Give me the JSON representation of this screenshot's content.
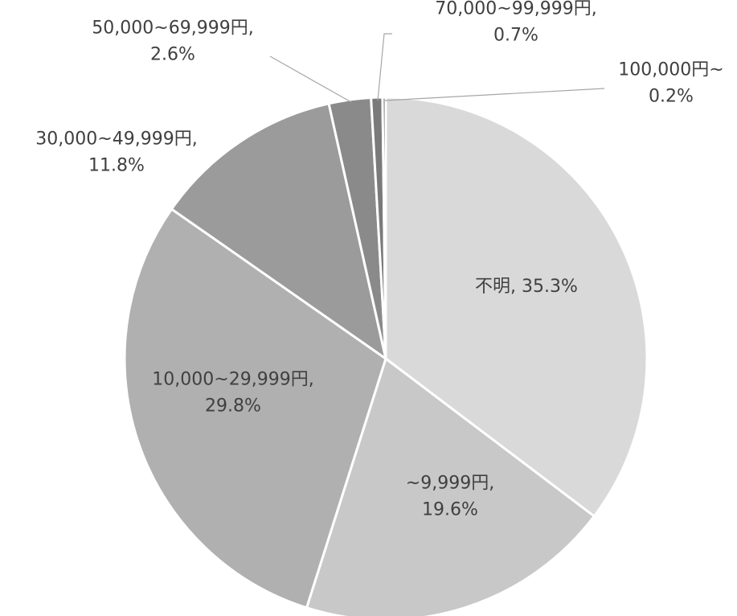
{
  "chart_data": {
    "type": "pie",
    "title": "",
    "categories": [
      "不明",
      "~9,999円",
      "10,000~29,999円",
      "30,000~49,999円",
      "50,000~69,999円",
      "70,000~99,999円",
      "100,000円~"
    ],
    "values": [
      35.3,
      19.6,
      29.8,
      11.8,
      2.6,
      0.7,
      0.2
    ],
    "unit": "%",
    "start_angle_deg": 0,
    "direction": "clockwise",
    "legend": "none",
    "data_labels": [
      {
        "lines": [
          "不明, 35.3%"
        ]
      },
      {
        "lines": [
          "~9,999円,",
          "19.6%"
        ]
      },
      {
        "lines": [
          "10,000~29,999円,",
          "29.8%"
        ]
      },
      {
        "lines": [
          "30,000~49,999円,",
          "11.8%"
        ]
      },
      {
        "lines": [
          "50,000~69,999円,",
          "2.6%"
        ]
      },
      {
        "lines": [
          "70,000~99,999円,",
          "0.7%"
        ]
      },
      {
        "lines": [
          "100,000円~",
          "0.2%"
        ]
      }
    ],
    "colors": [
      "#d9d9d9",
      "#c8c8c8",
      "#b0b0b0",
      "#9b9b9b",
      "#8a8a8a",
      "#7a7a7a",
      "#6e6e6e"
    ]
  }
}
